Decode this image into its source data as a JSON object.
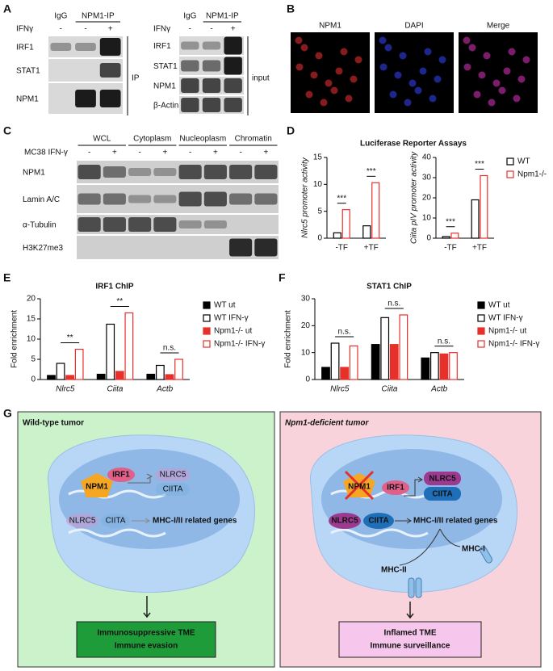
{
  "panel_a": {
    "label": "A",
    "left": {
      "col_headers": [
        "IgG",
        "NPM1-IP"
      ],
      "treatment": "IFNγ",
      "signs": [
        "-",
        "-",
        "+"
      ],
      "rows": [
        "IRF1",
        "STAT1",
        "NPM1"
      ],
      "group": "IP"
    },
    "right": {
      "col_headers": [
        "IgG",
        "NPM1-IP"
      ],
      "treatment": "IFNγ",
      "signs": [
        "-",
        "-",
        "+"
      ],
      "rows": [
        "IRF1",
        "STAT1",
        "NPM1",
        "β-Actin"
      ],
      "group": "input"
    }
  },
  "panel_b": {
    "label": "B",
    "channels": [
      "NPM1",
      "DAPI",
      "Merge"
    ]
  },
  "panel_c": {
    "label": "C",
    "fractions": [
      "WCL",
      "Cytoplasm",
      "Nucleoplasm",
      "Chromatin"
    ],
    "treatment": "MC38 IFN-γ",
    "signs": [
      "-",
      "+",
      "-",
      "+",
      "-",
      "+",
      "-",
      "+"
    ],
    "rows": [
      "NPM1",
      "Lamin A/C",
      "α-Tubulin",
      "H3K27me3"
    ]
  },
  "chart_data": [
    {
      "type": "bar",
      "panel_label": "D",
      "title": "Luciferase Reporter Assays",
      "ylabel": "Nlrc5 promoter activity",
      "categories": [
        "-TF",
        "+TF"
      ],
      "ylim": [
        0,
        15
      ],
      "yticks": [
        0,
        5,
        10,
        15
      ],
      "significance": [
        "***",
        "***"
      ],
      "series": [
        {
          "name": "WT",
          "color": "#000000",
          "filled": false,
          "values": [
            1,
            2.3
          ]
        },
        {
          "name": "Npm1-/-",
          "color": "#e8302b",
          "filled": false,
          "values": [
            5.3,
            10.3
          ]
        }
      ]
    },
    {
      "type": "bar",
      "ylabel": "Ciita pIV promoter activity",
      "categories": [
        "-TF",
        "+TF"
      ],
      "ylim": [
        0,
        40
      ],
      "yticks": [
        0,
        10,
        20,
        30,
        40
      ],
      "significance": [
        "***",
        "***"
      ],
      "series": [
        {
          "color": "#000000",
          "filled": false,
          "values": [
            0.8,
            19
          ]
        },
        {
          "color": "#e8302b",
          "filled": false,
          "values": [
            2.5,
            31
          ]
        }
      ]
    },
    {
      "type": "bar",
      "panel_label": "E",
      "title": "IRF1 ChIP",
      "ylabel": "Fold enrichment",
      "categories": [
        "Nlrc5",
        "Ciita",
        "Actb"
      ],
      "ylim": [
        0,
        20
      ],
      "yticks": [
        0,
        5,
        10,
        15,
        20
      ],
      "significance": [
        "**",
        "**",
        "n.s."
      ],
      "series": [
        {
          "name": "WT ut",
          "color": "#000000",
          "filled": true,
          "values": [
            1,
            1.3,
            1.3
          ]
        },
        {
          "name": "WT IFN-γ",
          "color": "#000000",
          "filled": false,
          "values": [
            4,
            13.7,
            3.5
          ]
        },
        {
          "name": "Npm1-/- ut",
          "color": "#e8302b",
          "filled": true,
          "values": [
            1,
            2,
            1.2
          ]
        },
        {
          "name": "Npm1-/- IFN-γ",
          "color": "#e8302b",
          "filled": false,
          "values": [
            7.5,
            16.5,
            5
          ]
        }
      ]
    },
    {
      "type": "bar",
      "panel_label": "F",
      "title": "STAT1 ChIP",
      "ylabel": "Fold enrichment",
      "categories": [
        "Nlrc5",
        "Ciita",
        "Actb"
      ],
      "ylim": [
        0,
        30
      ],
      "yticks": [
        0,
        10,
        20,
        30
      ],
      "significance": [
        "n.s.",
        "n.s.",
        "n.s."
      ],
      "series": [
        {
          "name": "WT ut",
          "color": "#000000",
          "filled": true,
          "values": [
            4.5,
            13,
            8
          ]
        },
        {
          "name": "WT IFN-γ",
          "color": "#000000",
          "filled": false,
          "values": [
            13.5,
            23,
            10
          ]
        },
        {
          "name": "Npm1-/- ut",
          "color": "#e8302b",
          "filled": true,
          "values": [
            4.5,
            13,
            9.5
          ]
        },
        {
          "name": "Npm1-/- IFN-γ",
          "color": "#e8302b",
          "filled": false,
          "values": [
            12.5,
            24,
            10
          ]
        }
      ]
    }
  ],
  "panel_g": {
    "label": "G",
    "left": {
      "title": "Wild-type tumor",
      "npm1": "NPM1",
      "irf1": "IRF1",
      "targets": [
        "NLRC5",
        "CIITA"
      ],
      "bound": [
        "NLRC5",
        "CIITA"
      ],
      "genes": "MHC-I/II related genes",
      "outcome": [
        "Immunosuppressive TME",
        "Immune evasion"
      ]
    },
    "right": {
      "title": "Npm1-deficient tumor",
      "npm1": "NPM1",
      "irf1": "IRF1",
      "targets": [
        "NLRC5",
        "CIITA"
      ],
      "bound": [
        "NLRC5",
        "CIITA"
      ],
      "genes": "MHC-I/II related genes",
      "mhc": [
        "MHC-I",
        "MHC-II"
      ],
      "outcome": [
        "Inflamed TME",
        "Immune surveillance"
      ]
    }
  }
}
